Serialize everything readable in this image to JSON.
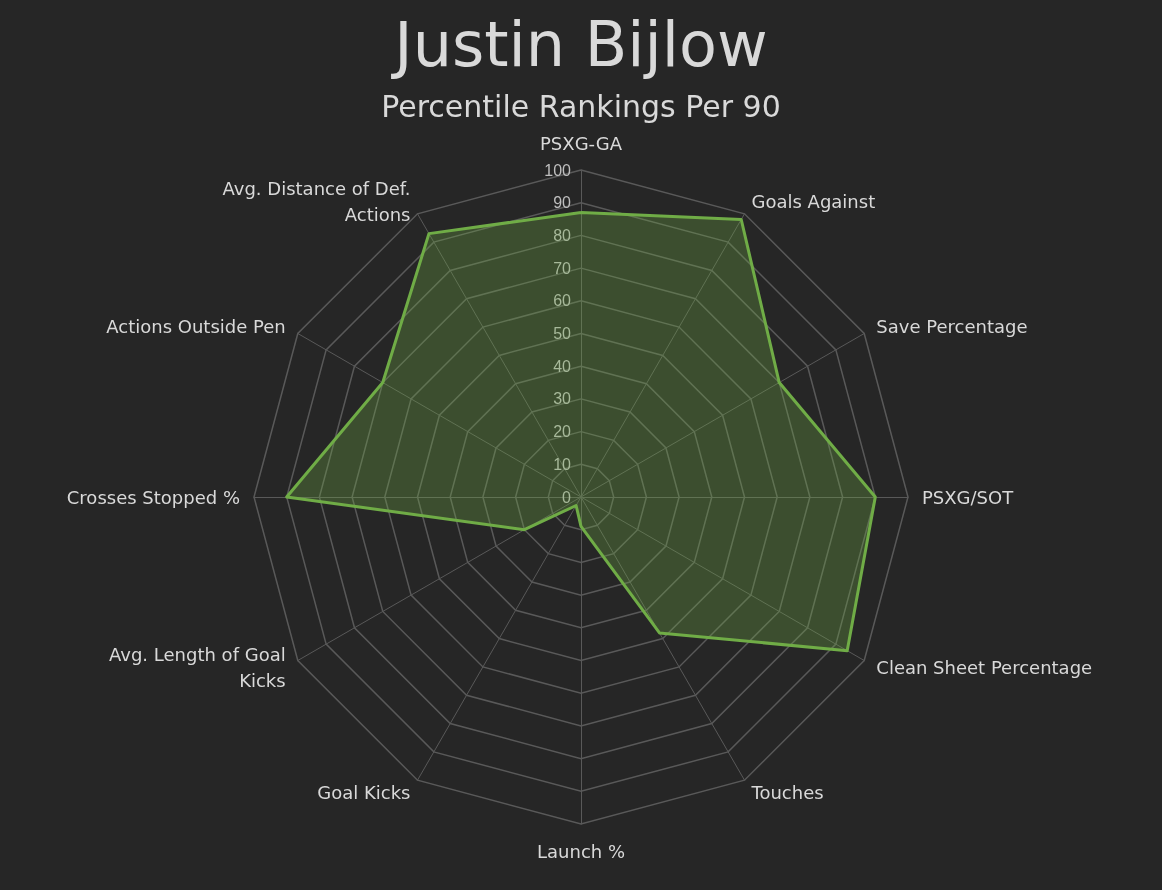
{
  "chart_data": {
    "type": "radar",
    "title": "Justin Bijlow",
    "subtitle": "Percentile Rankings Per 90",
    "categories": [
      "PSXG-GA",
      "Goals Against",
      "Save Percentage",
      "PSXG/SOT",
      "Clean Sheet Percentage",
      "Touches",
      "Launch %",
      "Goal Kicks",
      "Avg. Length of Goal Kicks",
      "Crosses Stopped %",
      "Actions Outside Pen",
      "Avg. Distance of Def. Actions"
    ],
    "series": [
      {
        "color": "#70ad47",
        "values": [
          87,
          98,
          70,
          90,
          94,
          48,
          9,
          3,
          20,
          90,
          70,
          93
        ]
      }
    ],
    "ylim": [
      0,
      100
    ],
    "yticks": [
      0,
      10,
      20,
      30,
      40,
      50,
      60,
      70,
      80,
      90,
      100
    ]
  }
}
